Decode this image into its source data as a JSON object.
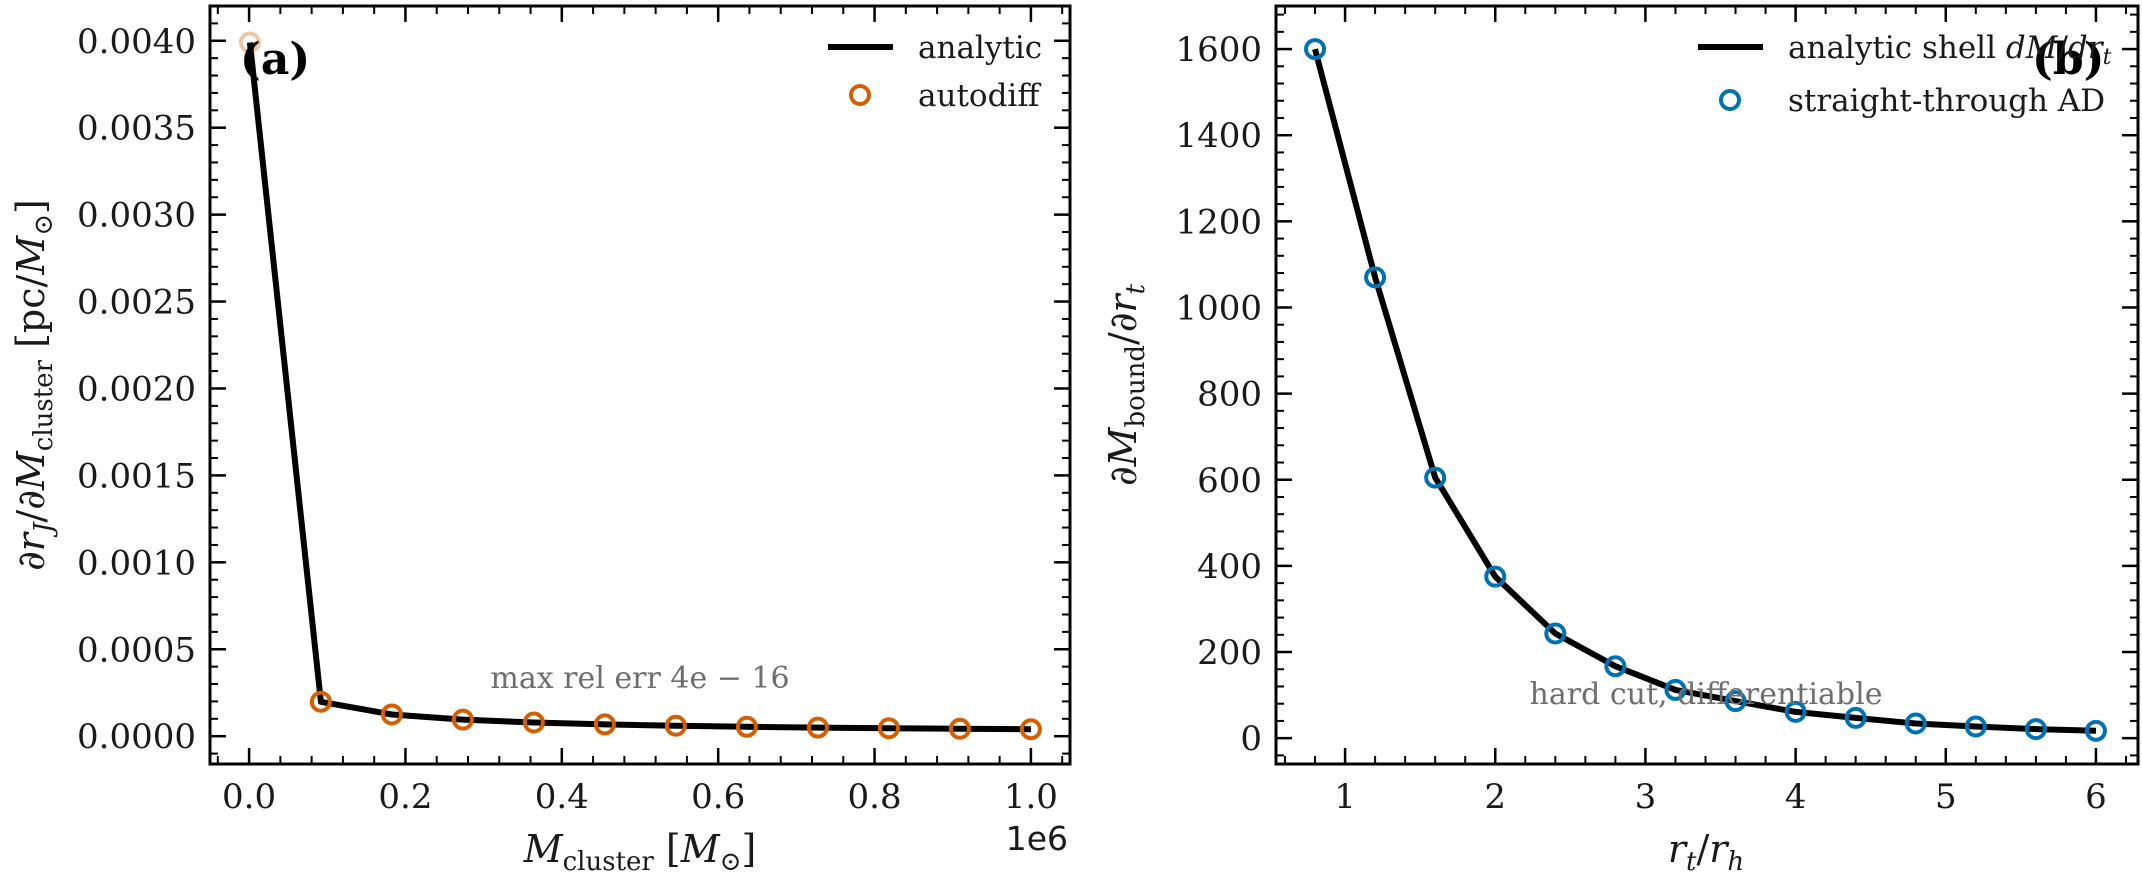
{
  "colors": {
    "analytic": "#000000",
    "autodiff_a": "#D55E00",
    "autodiff_b": "#0072B2",
    "annotation": "#6e6e6e"
  },
  "chart_data": [
    {
      "type": "line",
      "panel_label": "(a)",
      "xlabel": "M_cluster [M_⊙]",
      "ylabel": "∂r_J / ∂M_cluster [pc/M_⊙]",
      "x_offset_label": "1e6",
      "xlim": [
        -50000,
        1050000
      ],
      "ylim": [
        -0.00016,
        0.0042
      ],
      "xticks": [
        0,
        200000,
        400000,
        600000,
        800000,
        1000000
      ],
      "xtick_labels": [
        "0.0",
        "0.2",
        "0.4",
        "0.6",
        "0.8",
        "1.0"
      ],
      "yticks": [
        0,
        0.0005,
        0.001,
        0.0015,
        0.002,
        0.0025,
        0.003,
        0.0035,
        0.004
      ],
      "ytick_labels": [
        "0.0000",
        "0.0005",
        "0.0010",
        "0.0015",
        "0.0020",
        "0.0025",
        "0.0030",
        "0.0035",
        "0.0040"
      ],
      "annotation": "max rel err 4e − 16",
      "legend_position": "top-right",
      "series": [
        {
          "name": "analytic",
          "kind": "line",
          "x": [
            1000,
            91818,
            182636,
            273455,
            364273,
            455091,
            545909,
            636727,
            727545,
            818364,
            909182,
            1000000
          ],
          "y": [
            0.00399,
            0.000198,
            0.000125,
            9.52e-05,
            7.86e-05,
            6.77e-05,
            5.99e-05,
            5.4e-05,
            4.94e-05,
            4.57e-05,
            4.26e-05,
            4e-05
          ]
        },
        {
          "name": "autodiff",
          "kind": "marker",
          "x": [
            1000,
            91818,
            182636,
            273455,
            364273,
            455091,
            545909,
            636727,
            727545,
            818364,
            909182,
            1000000
          ],
          "y": [
            0.00399,
            0.000198,
            0.000125,
            9.52e-05,
            7.86e-05,
            6.77e-05,
            5.99e-05,
            5.4e-05,
            4.94e-05,
            4.57e-05,
            4.26e-05,
            4e-05
          ]
        }
      ]
    },
    {
      "type": "line",
      "panel_label": "(b)",
      "xlabel": "r_t / r_h",
      "ylabel": "∂M_bound / ∂r_t",
      "xlim": [
        0.54,
        6.28
      ],
      "ylim": [
        -60,
        1700
      ],
      "xticks": [
        1,
        2,
        3,
        4,
        5,
        6
      ],
      "xtick_labels": [
        "1",
        "2",
        "3",
        "4",
        "5",
        "6"
      ],
      "yticks": [
        0,
        200,
        400,
        600,
        800,
        1000,
        1200,
        1400,
        1600
      ],
      "ytick_labels": [
        "0",
        "200",
        "400",
        "600",
        "800",
        "1000",
        "1200",
        "1400",
        "1600"
      ],
      "annotation": "hard cut, differentiable",
      "legend_position": "top-right",
      "series": [
        {
          "name": "analytic shell dM/dr_t",
          "kind": "line",
          "x": [
            0.8,
            1.2,
            1.6,
            2.0,
            2.4,
            2.8,
            3.2,
            3.6,
            4.0,
            4.4,
            4.8,
            5.2,
            5.6,
            6.0
          ],
          "y": [
            1600,
            1070,
            605,
            375,
            243,
            167,
            112,
            86,
            61,
            47,
            34,
            27,
            21,
            17
          ]
        },
        {
          "name": "straight-through AD",
          "kind": "marker",
          "x": [
            0.8,
            1.2,
            1.6,
            2.0,
            2.4,
            2.8,
            3.2,
            3.6,
            4.0,
            4.4,
            4.8,
            5.2,
            5.6,
            6.0
          ],
          "y": [
            1600,
            1070,
            605,
            375,
            243,
            167,
            112,
            86,
            61,
            47,
            34,
            27,
            21,
            17
          ]
        }
      ]
    }
  ]
}
